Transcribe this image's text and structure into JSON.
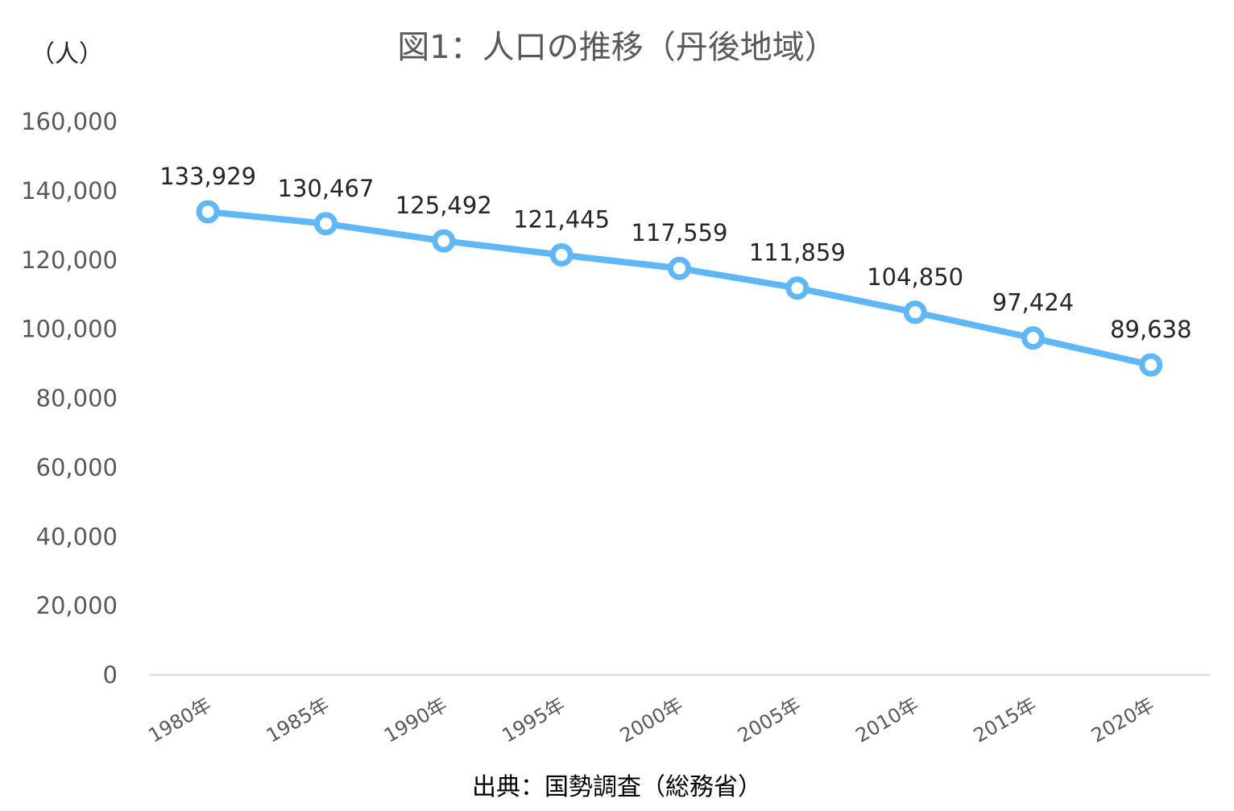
{
  "header": {
    "title": "図1：人口の推移（丹後地域）",
    "unit": "（人）"
  },
  "footer": {
    "source": "出典：国勢調査（総務省）"
  },
  "chart_data": {
    "type": "line",
    "title": "図1：人口の推移（丹後地域）",
    "ylabel": "（人）",
    "xlabel": "",
    "categories": [
      "1980年",
      "1985年",
      "1990年",
      "1995年",
      "2000年",
      "2005年",
      "2010年",
      "2015年",
      "2020年"
    ],
    "series": [
      {
        "values": [
          133929,
          130467,
          125492,
          121445,
          117559,
          111859,
          104850,
          97424,
          89638
        ],
        "color": "#5fb8f5"
      }
    ],
    "data_labels": [
      "133,929",
      "130,467",
      "125,492",
      "121,445",
      "117,559",
      "111,859",
      "104,850",
      "97,424",
      "89,638"
    ],
    "ylim": [
      0,
      160000
    ],
    "yticks": [
      0,
      20000,
      40000,
      60000,
      80000,
      100000,
      120000,
      140000,
      160000
    ],
    "ytick_labels": [
      "0",
      "20,000",
      "40,000",
      "60,000",
      "80,000",
      "100,000",
      "120,000",
      "140,000",
      "160,000"
    ],
    "grid": false,
    "legend": "none",
    "axis_color": "#d9d9d9",
    "text_color": "#595959"
  }
}
